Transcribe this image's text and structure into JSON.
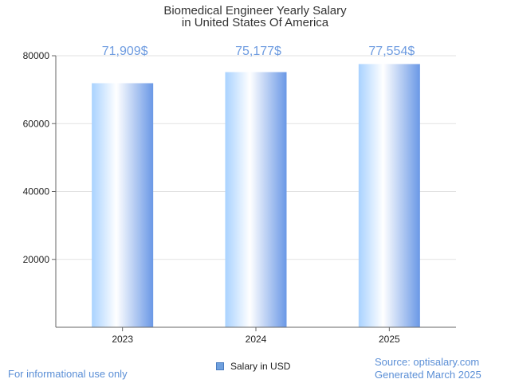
{
  "chart_data": {
    "type": "bar",
    "title_lines": [
      "Biomedical Engineer Yearly Salary",
      "in United States Of America"
    ],
    "categories": [
      "2023",
      "2024",
      "2025"
    ],
    "values": [
      71909,
      75177,
      77554
    ],
    "value_labels": [
      "71,909$",
      "75,177$",
      "77,554$"
    ],
    "series": [
      {
        "name": "Salary in USD",
        "values": [
          71909,
          75177,
          77554
        ]
      }
    ],
    "ylim": [
      0,
      80000
    ],
    "yticks": [
      20000,
      40000,
      60000,
      80000
    ],
    "ytick_labels": [
      "20000",
      "40000",
      "60000",
      "80000"
    ],
    "grid": true,
    "legend_position": "bottom"
  },
  "legend": {
    "label": "Salary in USD"
  },
  "footer": {
    "left": "For informational use only",
    "source": "Source: optisalary.com",
    "generated": "Generated March 2025"
  },
  "colors": {
    "bar_light": "#ffffff",
    "bar_mid": "#cfe4ff",
    "bar_dark": "#6a98e6",
    "grid": "#e2e2e2",
    "axis": "#666666",
    "label": "#6d9be0"
  }
}
